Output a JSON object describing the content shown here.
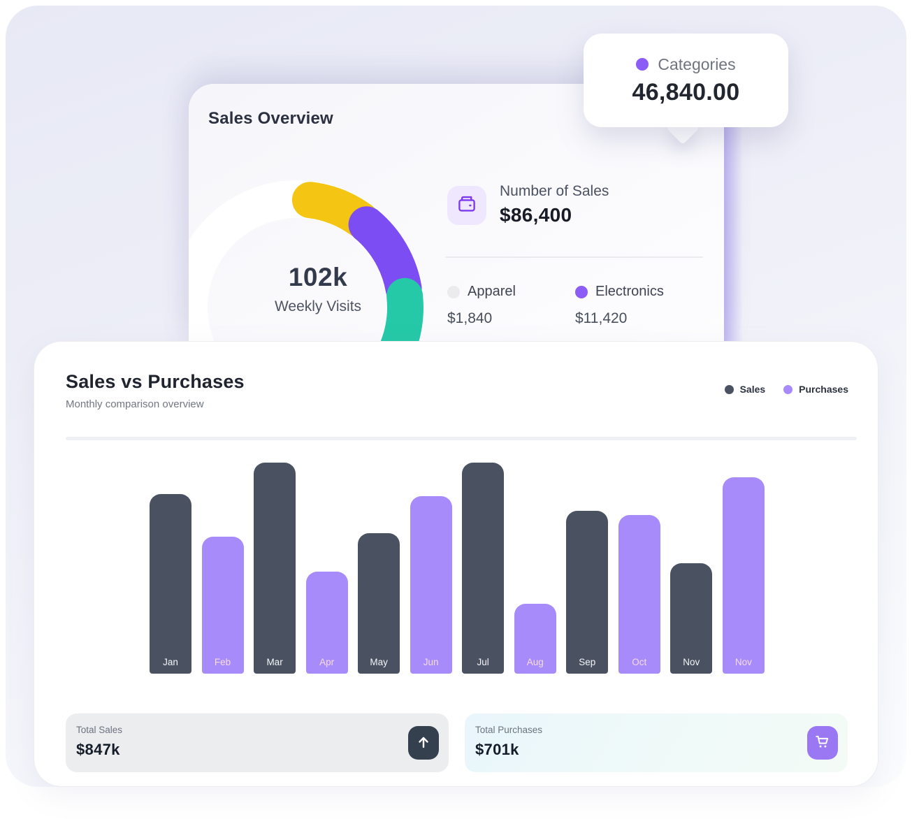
{
  "tooltip": {
    "label": "Categories",
    "value": "46,840.00",
    "dot_color": "#8b5cf6"
  },
  "overview": {
    "title": "Sales Overview",
    "gauge": {
      "center_value": "102k",
      "center_label": "Weekly Visits",
      "segment_colors": {
        "yellow": "#f4c513",
        "purple": "#7c4df3",
        "teal": "#25c9a7"
      }
    },
    "number_of_sales": {
      "label": "Number of Sales",
      "value": "$86,400"
    },
    "breakdown": [
      {
        "label": "Apparel",
        "value": "$1,840",
        "dot_color": "#ebebee"
      },
      {
        "label": "Electronics",
        "value": "$11,420",
        "dot_color": "#8b5cf6"
      }
    ]
  },
  "comparison": {
    "title": "Sales vs Purchases",
    "subtitle": "Monthly comparison overview",
    "legend": [
      {
        "label": "Sales",
        "color": "#4a5160"
      },
      {
        "label": "Purchases",
        "color": "#a78bfa"
      }
    ],
    "totals": [
      {
        "label": "Total Sales",
        "value": "$847k",
        "icon": "arrow-up-icon",
        "button_color": "#35404f"
      },
      {
        "label": "Total Purchases",
        "value": "$701k",
        "icon": "cart-icon",
        "button_color": "#9b78f3"
      }
    ]
  },
  "chart_data": [
    {
      "type": "bar",
      "title": "Sales vs Purchases",
      "subtitle": "Monthly comparison overview",
      "categories": [
        "Jan",
        "Feb",
        "Mar",
        "Apr",
        "May",
        "Jun",
        "Jul",
        "Aug",
        "Sep",
        "Oct",
        "Nov",
        "Nov"
      ],
      "series_per_bar": [
        "Sales",
        "Purchases",
        "Sales",
        "Purchases",
        "Sales",
        "Purchases",
        "Sales",
        "Purchases",
        "Sales",
        "Purchases",
        "Sales",
        "Purchases"
      ],
      "values_estimated_k": [
        150,
        114,
        176,
        85,
        117,
        148,
        176,
        58,
        136,
        132,
        92,
        164
      ],
      "ylim_k": [
        0,
        176
      ],
      "grid": false,
      "legend": [
        "Sales",
        "Purchases"
      ],
      "legend_position": "top-right",
      "colors": {
        "Sales": "#4a5160",
        "Purchases": "#a78bfa"
      },
      "totals": {
        "sales": "$847k",
        "purchases": "$701k"
      }
    },
    {
      "type": "pie",
      "variant": "donut-gauge",
      "title": "Sales Overview",
      "center_value": "102k",
      "center_label": "Weekly Visits",
      "segments": [
        {
          "color": "#f4c513"
        },
        {
          "color": "#7c4df3"
        },
        {
          "color": "#25c9a7"
        }
      ],
      "annotations": {
        "number_of_sales": "$86,400",
        "apparel": "$1,840",
        "electronics": "$11,420",
        "tooltip_categories": "46,840.00"
      }
    }
  ]
}
